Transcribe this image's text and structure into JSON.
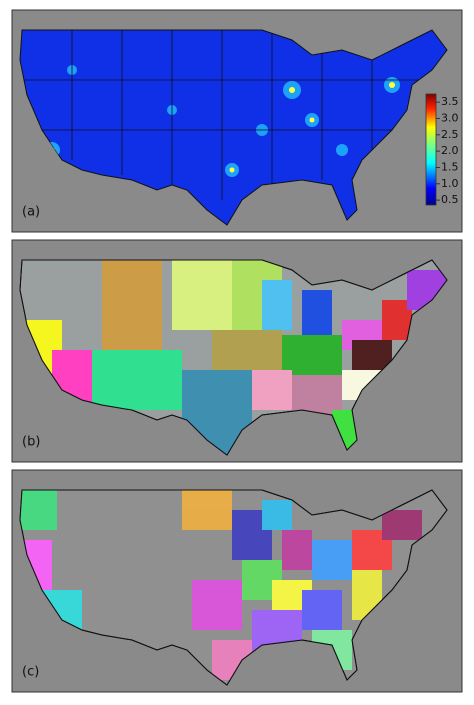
{
  "panels": [
    {
      "label": "(a)"
    },
    {
      "label": "(b)"
    },
    {
      "label": "(c)"
    }
  ],
  "colorbar": {
    "lim": [
      0.35,
      3.75
    ],
    "ticks": [
      0.5,
      {
        "value": 1,
        "label": "1.0"
      },
      1.5,
      {
        "value": 2,
        "label": "2.0"
      },
      2.5,
      {
        "value": 3,
        "label": "3.0"
      },
      3.5
    ]
  }
}
